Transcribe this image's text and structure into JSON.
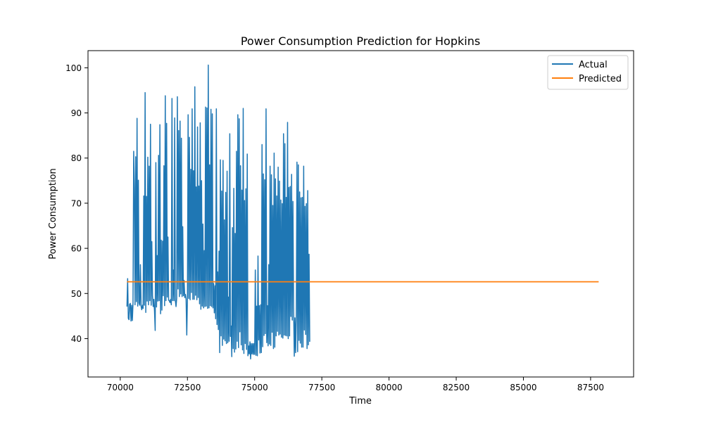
{
  "chart_data": {
    "type": "line",
    "title": "Power Consumption Prediction for Hopkins",
    "xlabel": "Time",
    "ylabel": "Power Consumption",
    "xlim": [
      68800,
      89100
    ],
    "ylim": [
      31.5,
      103.8
    ],
    "xticks": [
      70000,
      72500,
      75000,
      77500,
      80000,
      82500,
      85000,
      87500
    ],
    "xtick_labels": [
      "70000",
      "72500",
      "75000",
      "77500",
      "80000",
      "82500",
      "85000",
      "87500"
    ],
    "yticks": [
      40,
      50,
      60,
      70,
      80,
      90,
      100
    ],
    "ytick_labels": [
      "40",
      "50",
      "60",
      "70",
      "80",
      "90",
      "100"
    ],
    "grid": false,
    "legend_position": "top-right",
    "series": [
      {
        "name": "Actual",
        "color": "#1f77b4",
        "x_start": 70250,
        "x_step": 25,
        "values": [
          47.1,
          53.3,
          44.5,
          44.2,
          47.6,
          47.8,
          43.9,
          47.4,
          44.0,
          47.8,
          81.5,
          73.5,
          47.5,
          80.3,
          48.2,
          88.8,
          47.2,
          75.1,
          47.9,
          47.4,
          56.4,
          47.2,
          46.4,
          47.4,
          46.7,
          71.6,
          47.4,
          94.5,
          45.8,
          71.5,
          48.3,
          80.2,
          47.5,
          78.2,
          48.4,
          87.5,
          47.4,
          61.5,
          49.5,
          47.1,
          48.7,
          46.1,
          41.8,
          79.0,
          47.0,
          58.4,
          48.3,
          80.6,
          48.4,
          87.4,
          45.5,
          61.8,
          46.3,
          61.6,
          49.5,
          78.3,
          47.3,
          93.8,
          48.4,
          87.7,
          49.2,
          62.5,
          48.5,
          48.4,
          48.0,
          48.7,
          47.5,
          93.2,
          48.4,
          55.2,
          48.4,
          88.9,
          48.5,
          47.1,
          49.0,
          93.6,
          51.0,
          86.1,
          49.3,
          88.2,
          49.9,
          84.4,
          49.3,
          64.8,
          49.5,
          52.9,
          49.1,
          49.8,
          48.7,
          40.8,
          49.3,
          89.6,
          48.9,
          84.6,
          48.6,
          77.5,
          50.2,
          90.9,
          48.7,
          77.2,
          48.7,
          95.8,
          49.6,
          73.6,
          48.6,
          86.9,
          49.1,
          73.8,
          47.7,
          87.8,
          46.5,
          75.0,
          47.2,
          65.4,
          46.8,
          59.5,
          47.1,
          91.3,
          47.2,
          91.1,
          46.7,
          100.6,
          46.8,
          78.5,
          47.3,
          90.8,
          47.1,
          89.8,
          46.8,
          52.2,
          45.7,
          51.7,
          44.4,
          90.9,
          43.1,
          54.8,
          42.0,
          59.4,
          36.9,
          79.6,
          40.6,
          72.7,
          38.5,
          79.5,
          39.9,
          66.3,
          39.5,
          72.4,
          38.9,
          77.1,
          39.1,
          49.2,
          39.4,
          85.4,
          40.5,
          42.8,
          36.0,
          64.6,
          37.8,
          73.3,
          37.0,
          63.3,
          37.7,
          81.5,
          39.4,
          89.6,
          38.0,
          88.7,
          41.5,
          78.3,
          38.6,
          72.9,
          37.5,
          91.0,
          36.7,
          70.6,
          38.9,
          73.2,
          37.6,
          80.9,
          36.2,
          38.4,
          36.6,
          39.3,
          35.5,
          38.9,
          36.6,
          38.9,
          36.5,
          38.9,
          36.5,
          55.2,
          36.3,
          47.2,
          36.2,
          58.3,
          39.7,
          47.3,
          36.8,
          47.5,
          36.9,
          83.0,
          38.2,
          76.5,
          40.7,
          75.2,
          41.1,
          90.9,
          39.1,
          47.3,
          38.4,
          56.4,
          38.8,
          78.2,
          38.5,
          76.3,
          41.4,
          69.5,
          37.8,
          81.1,
          38.1,
          75.4,
          40.6,
          71.6,
          41.6,
          78.0,
          40.8,
          74.9,
          41.0,
          70.7,
          40.3,
          69.9,
          40.1,
          85.4,
          40.8,
          83.2,
          40.7,
          71.3,
          40.6,
          87.9,
          40.0,
          73.5,
          40.6,
          73.7,
          44.9,
          76.4,
          44.1,
          70.4,
          46.9,
          36.1,
          44.6,
          36.9,
          45.0,
          79.1,
          37.1,
          78.5,
          39.6,
          72.5,
          39.0,
          71.2,
          38.1,
          71.3,
          38.1,
          78.2,
          41.9,
          69.3,
          40.9,
          69.9,
          37.8,
          72.8,
          38.6,
          58.7,
          39.3
        ]
      },
      {
        "name": "Predicted",
        "color": "#ff7f0e",
        "x": [
          70250,
          87800
        ],
        "values": [
          52.6,
          52.6
        ]
      }
    ]
  }
}
